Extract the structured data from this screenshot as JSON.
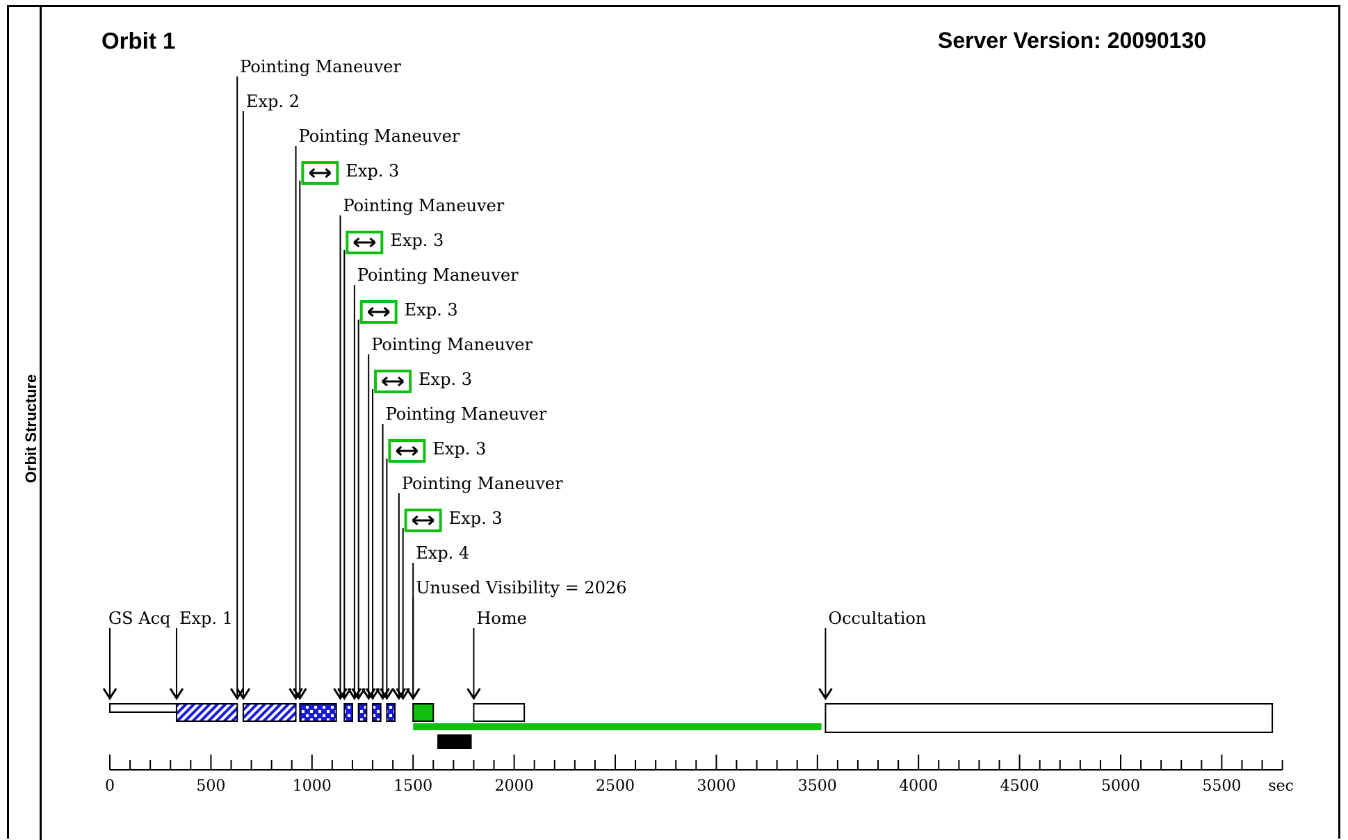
{
  "sidebar": {
    "label": "Orbit Structure"
  },
  "header": {
    "title": "Orbit 1",
    "server_version": "Server Version: 20090130"
  },
  "colors": {
    "accent": "#10c010",
    "hatch": "#1a1adc",
    "outline": "#000000"
  },
  "axis": {
    "unit": "sec",
    "min": 0,
    "max": 5800,
    "labeled_ticks": [
      0,
      500,
      1000,
      1500,
      2000,
      2500,
      3000,
      3500,
      4000,
      4500,
      5000,
      5500
    ],
    "minor_step": 100
  },
  "events": [
    {
      "label": "GS Acq",
      "time": 0
    },
    {
      "label": "Exp. 1",
      "time": 330
    },
    {
      "label": "Pointing Maneuver",
      "time": 630
    },
    {
      "label": "Exp. 2",
      "time": 660
    },
    {
      "label": "Pointing Maneuver",
      "time": 920
    },
    {
      "label": "Exp. 3",
      "time": 940,
      "icon": "move-arrows-icon"
    },
    {
      "label": "Pointing Maneuver",
      "time": 1140
    },
    {
      "label": "Exp. 3",
      "time": 1160,
      "icon": "move-arrows-icon"
    },
    {
      "label": "Pointing Maneuver",
      "time": 1210
    },
    {
      "label": "Exp. 3",
      "time": 1230,
      "icon": "move-arrows-icon"
    },
    {
      "label": "Pointing Maneuver",
      "time": 1280
    },
    {
      "label": "Exp. 3",
      "time": 1300,
      "icon": "move-arrows-icon"
    },
    {
      "label": "Pointing Maneuver",
      "time": 1350
    },
    {
      "label": "Exp. 3",
      "time": 1370,
      "icon": "move-arrows-icon"
    },
    {
      "label": "Pointing Maneuver",
      "time": 1430
    },
    {
      "label": "Exp. 3",
      "time": 1450,
      "icon": "move-arrows-icon"
    },
    {
      "label": "Exp. 4",
      "time": 1500
    },
    {
      "label": "Unused Visibility = 2026",
      "time": 1500
    },
    {
      "label": "Home",
      "time": 1800
    },
    {
      "label": "Occultation",
      "time": 3540
    }
  ],
  "segments": [
    {
      "kind": "acq",
      "start": 0,
      "end": 330
    },
    {
      "kind": "exp-hatched",
      "start": 330,
      "end": 630
    },
    {
      "kind": "exp-hatched",
      "start": 660,
      "end": 920
    },
    {
      "kind": "exp-dotted",
      "start": 940,
      "end": 1120
    },
    {
      "kind": "exp-dotted",
      "start": 1160,
      "end": 1200
    },
    {
      "kind": "exp-dotted",
      "start": 1230,
      "end": 1270
    },
    {
      "kind": "exp-dotted",
      "start": 1300,
      "end": 1340
    },
    {
      "kind": "exp-dotted",
      "start": 1370,
      "end": 1410
    },
    {
      "kind": "exp-green",
      "start": 1500,
      "end": 1600
    },
    {
      "kind": "home",
      "start": 1800,
      "end": 2050
    },
    {
      "kind": "occultation",
      "start": 3540,
      "end": 5750
    }
  ],
  "visibility_bar": {
    "start": 1500,
    "end": 3520
  },
  "black_bar": {
    "start": 1620,
    "end": 1790
  }
}
